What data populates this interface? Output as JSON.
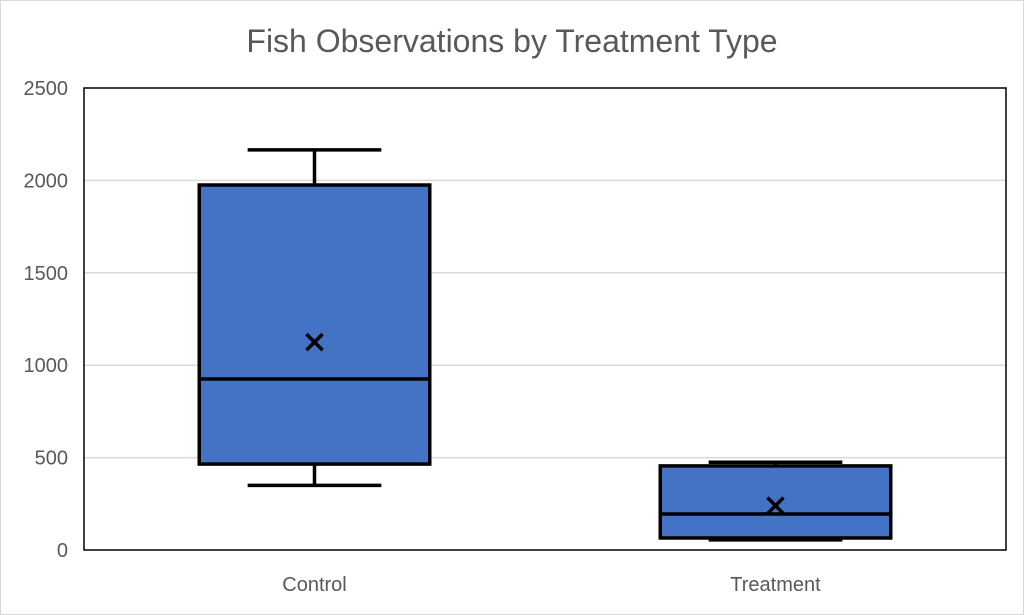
{
  "chart_data": {
    "type": "box",
    "title": "Fish Observations by Treatment Type",
    "xlabel": "",
    "ylabel": "",
    "ylim": [
      0,
      2500
    ],
    "yticks": [
      0,
      500,
      1000,
      1500,
      2000,
      2500
    ],
    "grid": true,
    "legend": "none",
    "categories": [
      "Control",
      "Treatment"
    ],
    "boxes": [
      {
        "category": "Control",
        "min": 350,
        "q1": 465,
        "median": 925,
        "q3": 1975,
        "max": 2165,
        "mean": 1125
      },
      {
        "category": "Treatment",
        "min": 55,
        "q1": 65,
        "median": 195,
        "q3": 455,
        "max": 475,
        "mean": 240
      }
    ],
    "colors": {
      "box_fill": "#4472C4",
      "stroke": "#000000",
      "grid": "#d9d9d9",
      "text": "#595959"
    }
  }
}
